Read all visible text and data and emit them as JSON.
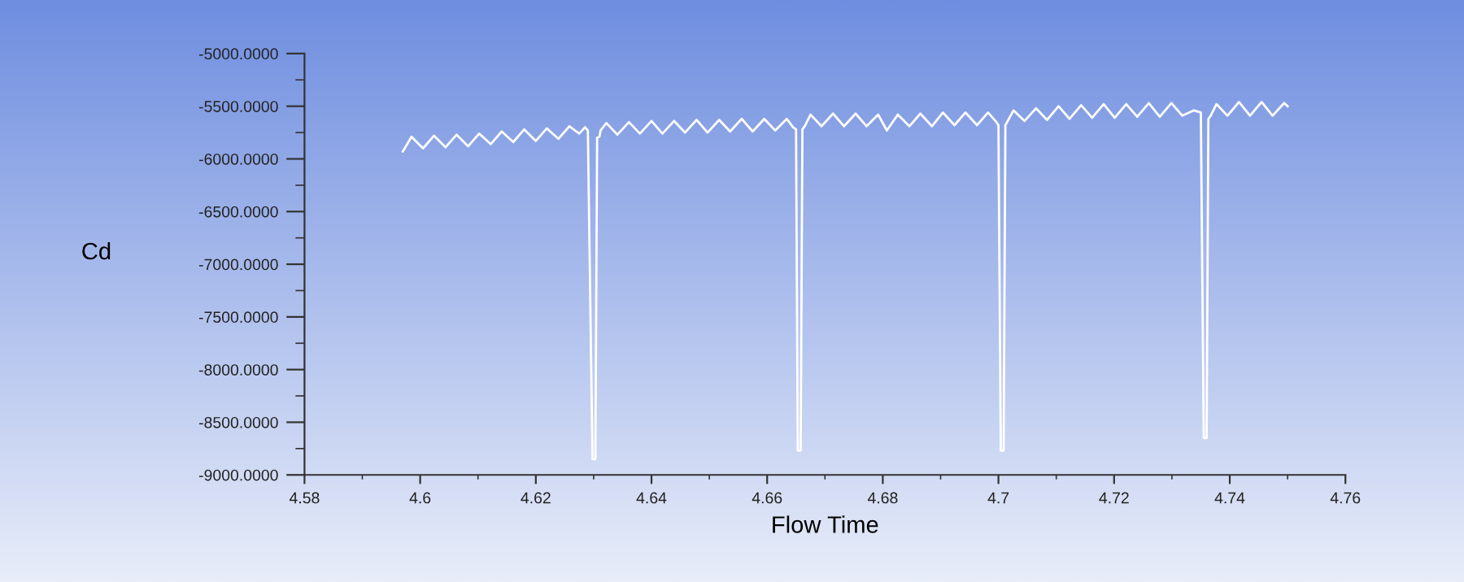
{
  "chart_data": {
    "type": "line",
    "xlabel": "Flow Time",
    "ylabel": "Cd",
    "x": [
      4.597,
      4.5985,
      4.6005,
      4.6024,
      4.6044,
      4.6063,
      4.6083,
      4.6102,
      4.6122,
      4.6141,
      4.6161,
      4.618,
      4.62,
      4.6219,
      4.6239,
      4.6258,
      4.6275,
      4.6285,
      4.629,
      4.6298,
      4.6303,
      4.6306,
      4.631,
      4.6312,
      4.6322,
      4.6341,
      4.6361,
      4.638,
      4.64,
      4.6419,
      4.6439,
      4.6458,
      4.6478,
      4.6497,
      4.6517,
      4.6536,
      4.6556,
      4.6575,
      4.6595,
      4.6614,
      4.6634,
      4.6645,
      4.665,
      4.6653,
      4.6658,
      4.6661,
      4.6665,
      4.6675,
      4.6694,
      4.6714,
      4.6733,
      4.6753,
      4.6772,
      4.6792,
      4.6807,
      4.6826,
      4.6846,
      4.6865,
      4.6885,
      4.6904,
      4.6924,
      4.6943,
      4.6963,
      4.6982,
      4.6995,
      4.7,
      4.7004,
      4.7009,
      4.7012,
      4.7016,
      4.7026,
      4.7045,
      4.7065,
      4.7084,
      4.7104,
      4.7123,
      4.7143,
      4.7162,
      4.7182,
      4.7201,
      4.7221,
      4.724,
      4.726,
      4.7279,
      4.7299,
      4.7318,
      4.7338,
      4.735,
      4.7355,
      4.736,
      4.7363,
      4.7367,
      4.7377,
      4.7396,
      4.7416,
      4.7435,
      4.7455,
      4.7474,
      4.7494,
      4.75
    ],
    "series": [
      {
        "color": "#ffffff",
        "values": [
          -5930,
          -5790,
          -5900,
          -5780,
          -5890,
          -5770,
          -5880,
          -5760,
          -5860,
          -5740,
          -5840,
          -5720,
          -5830,
          -5710,
          -5810,
          -5690,
          -5760,
          -5700,
          -5730,
          -8850,
          -8850,
          -5800,
          -5790,
          -5730,
          -5660,
          -5770,
          -5650,
          -5760,
          -5640,
          -5760,
          -5640,
          -5750,
          -5630,
          -5750,
          -5630,
          -5740,
          -5620,
          -5740,
          -5620,
          -5730,
          -5620,
          -5700,
          -5720,
          -8770,
          -8770,
          -5720,
          -5690,
          -5580,
          -5690,
          -5570,
          -5690,
          -5570,
          -5690,
          -5580,
          -5730,
          -5580,
          -5690,
          -5570,
          -5690,
          -5560,
          -5680,
          -5560,
          -5680,
          -5560,
          -5640,
          -5680,
          -8770,
          -8770,
          -5680,
          -5640,
          -5540,
          -5640,
          -5520,
          -5630,
          -5500,
          -5620,
          -5490,
          -5610,
          -5480,
          -5610,
          -5480,
          -5600,
          -5470,
          -5600,
          -5470,
          -5590,
          -5540,
          -5560,
          -8650,
          -8650,
          -5620,
          -5590,
          -5480,
          -5590,
          -5460,
          -5590,
          -5460,
          -5590,
          -5470,
          -5500
        ]
      }
    ],
    "xlim": [
      4.58,
      4.76
    ],
    "xticks": [
      4.58,
      4.6,
      4.62,
      4.64,
      4.66,
      4.68,
      4.7,
      4.72,
      4.74,
      4.76
    ],
    "ylim": [
      -9000,
      -5000
    ],
    "yticks": [
      {
        "value": -9000,
        "label": "-9000.0000"
      },
      {
        "value": -8500,
        "label": "-8500.0000"
      },
      {
        "value": -8000,
        "label": "-8000.0000"
      },
      {
        "value": -7500,
        "label": "-7500.0000"
      },
      {
        "value": -7000,
        "label": "-7000.0000"
      },
      {
        "value": -6500,
        "label": "-6500.0000"
      },
      {
        "value": -6000,
        "label": "-6000.0000"
      },
      {
        "value": -5500,
        "label": "-5500.0000"
      },
      {
        "value": -5000,
        "label": "-5000.0000"
      }
    ],
    "grid": false,
    "marker": "none",
    "line_style": "solid"
  }
}
